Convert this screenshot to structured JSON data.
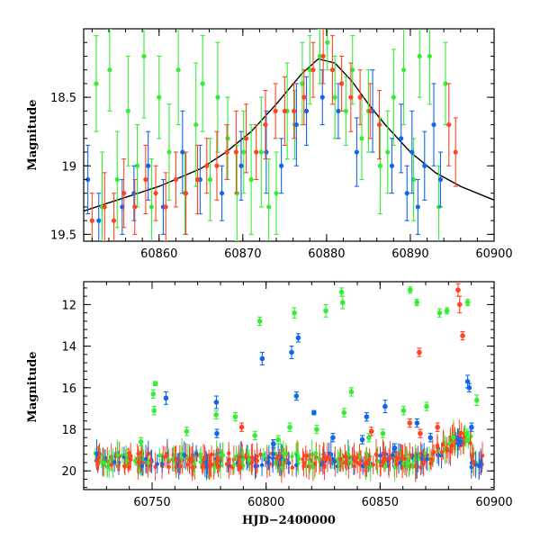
{
  "chart_data": [
    {
      "type": "scatter",
      "panel": "top",
      "ylabel": "Magnitude",
      "xlim": [
        60851,
        60900
      ],
      "ylim": [
        19.55,
        18.0
      ],
      "y_inverted": true,
      "xticks": [
        60860,
        60870,
        60880,
        60890,
        60900
      ],
      "xtick_labels": [
        "60860",
        "60870",
        "60880",
        "60890",
        "60900"
      ],
      "yticks": [
        18.5,
        19,
        19.5
      ],
      "ytick_labels": [
        "18.5",
        "19",
        "19.5"
      ],
      "grid": false,
      "colors": {
        "green": "#33ee33",
        "blue": "#1166ee",
        "red": "#ff4422",
        "model": "#000000"
      },
      "series": [
        {
          "color": "#33ee33",
          "x": [
            60852.5,
            60853.2,
            60854.1,
            60855.0,
            60856.3,
            60857.4,
            60858.2,
            60859.1,
            60860.0,
            60861.2,
            60862.3,
            60863.1,
            60864.4,
            60865.2,
            60866.1,
            60867.0,
            60868.2,
            60869.3,
            60870.1,
            60871.0,
            60872.2,
            60873.1,
            60874.0,
            60875.3,
            60876.2,
            60877.1,
            60878.0,
            60879.2,
            60880.1,
            60881.0,
            60882.3,
            60883.1,
            60884.2,
            60885.0,
            60886.4,
            60887.3,
            60888.0,
            60889.2,
            60890.4,
            60891.1,
            60892.3,
            60893.4,
            60894.2
          ],
          "y": [
            18.4,
            19.3,
            18.3,
            19.1,
            18.6,
            19.0,
            18.2,
            19.3,
            18.5,
            18.9,
            18.3,
            19.2,
            18.7,
            18.4,
            19.1,
            18.5,
            18.8,
            19.2,
            18.9,
            19.1,
            18.9,
            19.3,
            19.2,
            18.6,
            18.7,
            18.4,
            18.3,
            18.2,
            18.1,
            18.5,
            18.6,
            18.3,
            18.8,
            18.6,
            19.0,
            18.9,
            18.5,
            18.3,
            19.1,
            18.2,
            18.2,
            19.3,
            18.4
          ],
          "err": [
            0.35,
            0.4,
            0.3,
            0.35,
            0.4,
            0.3,
            0.45,
            0.35,
            0.3,
            0.35,
            0.4,
            0.3,
            0.45,
            0.35,
            0.3,
            0.4,
            0.3,
            0.35,
            0.3,
            0.4,
            0.4,
            0.35,
            0.3,
            0.35,
            0.25,
            0.3,
            0.25,
            0.2,
            0.2,
            0.3,
            0.25,
            0.25,
            0.3,
            0.3,
            0.35,
            0.3,
            0.35,
            0.4,
            0.3,
            0.3,
            0.35,
            0.3,
            0.3
          ]
        },
        {
          "color": "#1166ee",
          "x": [
            60851.5,
            60852.8,
            60855.6,
            60857.0,
            60858.7,
            60860.5,
            60862.8,
            60864.9,
            60867.5,
            60869.8,
            60872.8,
            60874.6,
            60876.4,
            60877.6,
            60879.5,
            60881.4,
            60883.6,
            60885.5,
            60887.8,
            60888.9,
            60889.6,
            60890.2,
            60890.9,
            60891.7,
            60892.8,
            60893.6
          ],
          "y": [
            19.1,
            19.4,
            19.3,
            19.2,
            19.0,
            19.3,
            18.9,
            19.1,
            19.2,
            19.0,
            18.9,
            19.0,
            18.7,
            18.6,
            18.5,
            18.6,
            18.9,
            18.6,
            19.0,
            18.8,
            19.2,
            18.9,
            19.3,
            19.0,
            18.7,
            19.1
          ],
          "err": [
            0.25,
            0.2,
            0.2,
            0.2,
            0.25,
            0.2,
            0.3,
            0.25,
            0.2,
            0.25,
            0.3,
            0.2,
            0.3,
            0.25,
            0.2,
            0.2,
            0.25,
            0.3,
            0.2,
            0.25,
            0.2,
            0.3,
            0.2,
            0.25,
            0.3,
            0.2
          ]
        },
        {
          "color": "#ff4422",
          "x": [
            60852.0,
            60853.5,
            60854.6,
            60855.8,
            60857.1,
            60858.4,
            60859.6,
            60860.8,
            60862.0,
            60863.2,
            60864.6,
            60865.7,
            60866.9,
            60868.1,
            60869.2,
            60870.4,
            60871.6,
            60872.7,
            60873.9,
            60875.0,
            60876.1,
            60877.3,
            60878.4,
            60879.6,
            60880.7,
            60881.8,
            60882.9,
            60884.0,
            60885.2,
            60886.3,
            60894.6,
            60895.4
          ],
          "y": [
            19.4,
            19.3,
            19.4,
            19.2,
            19.3,
            19.1,
            19.2,
            19.3,
            19.1,
            19.2,
            19.1,
            19.0,
            19.0,
            18.9,
            18.9,
            18.8,
            18.9,
            18.7,
            18.6,
            18.6,
            18.6,
            18.5,
            18.3,
            18.2,
            18.3,
            18.4,
            18.5,
            18.5,
            18.6,
            18.7,
            18.7,
            18.9
          ],
          "err": [
            0.2,
            0.25,
            0.2,
            0.25,
            0.2,
            0.25,
            0.2,
            0.25,
            0.2,
            0.3,
            0.25,
            0.2,
            0.25,
            0.2,
            0.3,
            0.25,
            0.2,
            0.25,
            0.2,
            0.25,
            0.2,
            0.2,
            0.2,
            0.2,
            0.25,
            0.2,
            0.25,
            0.2,
            0.2,
            0.25,
            0.3,
            0.25
          ]
        }
      ],
      "model_curve": {
        "x": [
          60851,
          60855,
          60860,
          60865,
          60868,
          60871,
          60874,
          60877,
          60879,
          60881,
          60883,
          60885,
          60887,
          60890,
          60893,
          60896,
          60900
        ],
        "y": [
          19.33,
          19.25,
          19.15,
          19.02,
          18.9,
          18.75,
          18.55,
          18.33,
          18.22,
          18.25,
          18.38,
          18.55,
          18.7,
          18.9,
          19.05,
          19.15,
          19.25
        ]
      }
    },
    {
      "type": "scatter",
      "panel": "bottom",
      "xlabel": "HJD−2400000",
      "ylabel": "Magnitude",
      "xlim": [
        60720,
        60900
      ],
      "ylim": [
        20.9,
        10.9
      ],
      "y_inverted": true,
      "xticks": [
        60750,
        60800,
        60850,
        60900
      ],
      "xtick_labels": [
        "60750",
        "60800",
        "60850",
        "60900"
      ],
      "yticks": [
        12,
        14,
        16,
        18,
        20
      ],
      "ytick_labels": [
        "12",
        "14",
        "16",
        "18",
        "20"
      ],
      "grid": false,
      "series": [
        {
          "color": "#33ee33",
          "x": [
            60750.5,
            60750.9,
            60797.2,
            60812.4,
            60826.2,
            60833.1,
            60833.6,
            60837.4,
            60863.2,
            60866.1,
            60876.1,
            60879.3,
            60888.4,
            60751.4,
            60778.1,
            60786.5,
            60810.4,
            60834.2,
            60860.3,
            60870.4,
            60892.4,
            60765.2,
            60795.1,
            60822.2,
            60851.2,
            60882.1,
            60745.1,
            60805.3,
            60845.1,
            60888.1
          ],
          "y": [
            16.3,
            17.1,
            12.8,
            12.4,
            12.3,
            11.4,
            11.9,
            16.2,
            11.3,
            11.9,
            12.4,
            12.3,
            11.9,
            15.8,
            17.3,
            17.4,
            17.9,
            17.2,
            17.1,
            16.9,
            16.6,
            18.1,
            18.3,
            18.0,
            18.2,
            18.4,
            18.6,
            18.5,
            18.4,
            18.2
          ],
          "err": [
            0.2,
            0.2,
            0.2,
            0.25,
            0.3,
            0.2,
            0.3,
            0.2,
            0.15,
            0.15,
            0.2,
            0.15,
            0.15,
            0.1,
            0.2,
            0.2,
            0.2,
            0.2,
            0.2,
            0.2,
            0.25,
            0.2,
            0.2,
            0.2,
            0.2,
            0.2,
            0.2,
            0.2,
            0.2,
            0.2
          ]
        },
        {
          "color": "#1166ee",
          "x": [
            60756.1,
            60778.2,
            60798.3,
            60811.2,
            60814.1,
            60813.3,
            60821.0,
            60844.1,
            60852.2,
            60866.2,
            60888.4,
            60889.1,
            60890.1,
            60778.4,
            60803.2,
            60829.3,
            60842.2,
            60856.4,
            60872.1,
            60885.2
          ],
          "y": [
            16.5,
            16.7,
            14.6,
            14.3,
            13.6,
            16.4,
            17.2,
            17.4,
            16.9,
            17.7,
            15.7,
            16.0,
            17.9,
            18.2,
            18.7,
            18.4,
            18.5,
            18.9,
            18.4,
            18.6
          ],
          "err": [
            0.3,
            0.3,
            0.3,
            0.3,
            0.2,
            0.2,
            0.1,
            0.2,
            0.3,
            0.2,
            0.3,
            0.2,
            0.2,
            0.2,
            0.2,
            0.2,
            0.2,
            0.2,
            0.2,
            0.2
          ]
        },
        {
          "color": "#ff4422",
          "x": [
            60867.2,
            60884.2,
            60884.9,
            60886.2,
            60867.6,
            60789.3,
            60846.2,
            60875.2,
            60863.0
          ],
          "y": [
            14.3,
            11.3,
            12.0,
            13.5,
            18.2,
            17.9,
            18.1,
            17.9,
            17.7
          ],
          "err": [
            0.2,
            0.3,
            0.4,
            0.2,
            0.2,
            0.2,
            0.2,
            0.2,
            0.2
          ]
        }
      ],
      "baseline": {
        "mean_mag": 19.5,
        "scatter": 0.35,
        "x_range": [
          60725,
          60895
        ]
      }
    }
  ]
}
